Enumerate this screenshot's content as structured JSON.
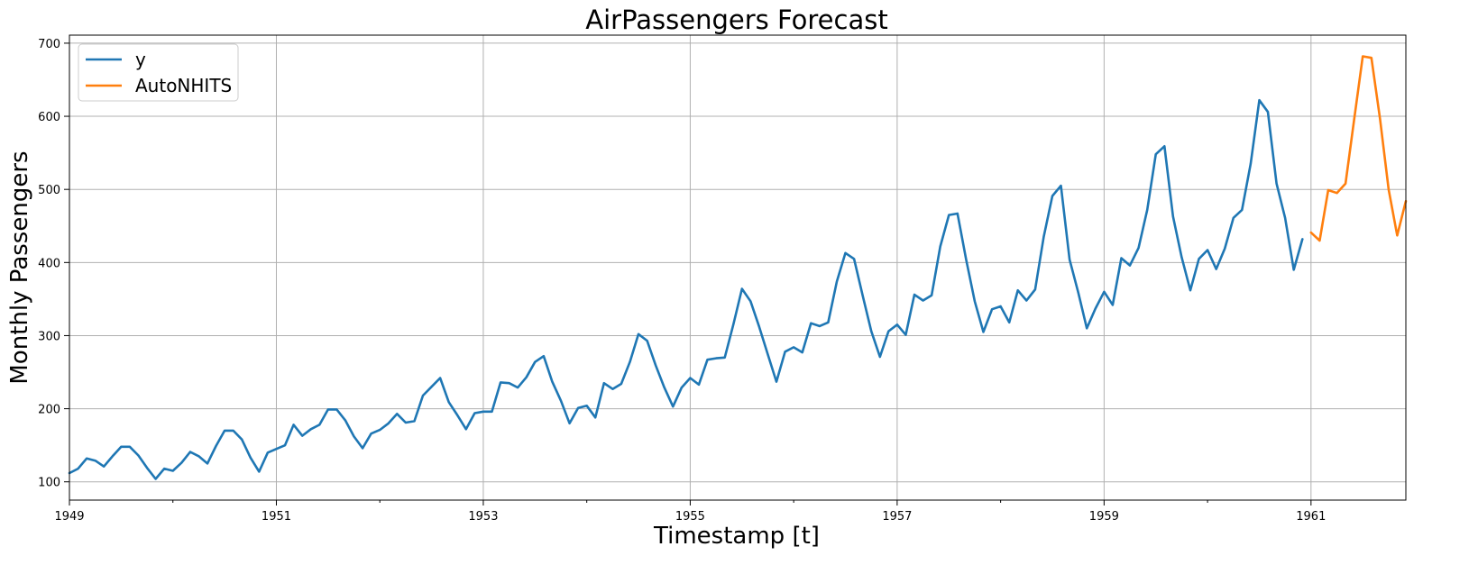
{
  "chart_data": {
    "type": "line",
    "title": "AirPassengers Forecast",
    "xlabel": "Timestamp [t]",
    "ylabel": "Monthly Passengers",
    "xlim": [
      "1949-01",
      "1961-12"
    ],
    "ylim": [
      75,
      711
    ],
    "x_ticks": [
      "1949",
      "1951",
      "1953",
      "1955",
      "1957",
      "1959",
      "1961"
    ],
    "y_ticks": [
      100,
      200,
      300,
      400,
      500,
      600,
      700
    ],
    "grid": true,
    "legend_position": "top-left",
    "series": [
      {
        "name": "y",
        "color": "#1f77b4",
        "start": "1949-01",
        "values": [
          112,
          118,
          132,
          129,
          121,
          135,
          148,
          148,
          136,
          119,
          104,
          118,
          115,
          126,
          141,
          135,
          125,
          149,
          170,
          170,
          158,
          133,
          114,
          140,
          145,
          150,
          178,
          163,
          172,
          178,
          199,
          199,
          184,
          162,
          146,
          166,
          171,
          180,
          193,
          181,
          183,
          218,
          230,
          242,
          209,
          191,
          172,
          194,
          196,
          196,
          236,
          235,
          229,
          243,
          264,
          272,
          237,
          211,
          180,
          201,
          204,
          188,
          235,
          227,
          234,
          264,
          302,
          293,
          259,
          229,
          203,
          229,
          242,
          233,
          267,
          269,
          270,
          315,
          364,
          347,
          312,
          274,
          237,
          278,
          284,
          277,
          317,
          313,
          318,
          374,
          413,
          405,
          355,
          306,
          271,
          306,
          315,
          301,
          356,
          348,
          355,
          422,
          465,
          467,
          404,
          347,
          305,
          336,
          340,
          318,
          362,
          348,
          363,
          435,
          491,
          505,
          404,
          359,
          310,
          337,
          360,
          342,
          406,
          396,
          420,
          472,
          548,
          559,
          463,
          407,
          362,
          405,
          417,
          391,
          419,
          461,
          472,
          535,
          622,
          606,
          508,
          461,
          390,
          432
        ]
      },
      {
        "name": "AutoNHITS",
        "color": "#ff7f0e",
        "start": "1961-01",
        "values": [
          441,
          430,
          499,
          495,
          508,
          595,
          682,
          680,
          597,
          500,
          437,
          484
        ]
      }
    ]
  }
}
